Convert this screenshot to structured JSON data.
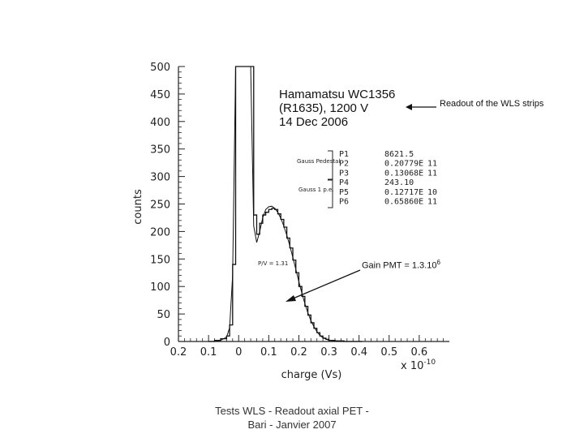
{
  "chart_data": {
    "type": "histogram",
    "title_lines": [
      "Hamamatsu WC1356",
      "(R1635), 1200 V",
      "14 Dec 2006"
    ],
    "xlabel": "charge (Vs)",
    "x_multiplier": "x 10",
    "x_multiplier_exp": "-10",
    "ylabel": "counts",
    "xlim": [
      -0.2,
      0.7
    ],
    "ylim": [
      0,
      500
    ],
    "x_ticks": [
      "0.2",
      "0.1",
      "0",
      "0.1",
      "0.2",
      "0.3",
      "0.4",
      "0.5",
      "0.6"
    ],
    "y_ticks": [
      "0",
      "50",
      "100",
      "150",
      "200",
      "250",
      "300",
      "350",
      "400",
      "450",
      "500"
    ],
    "x_tick_values": [
      -0.2,
      -0.1,
      0,
      0.1,
      0.2,
      0.3,
      0.4,
      0.5,
      0.6
    ],
    "y_tick_values": [
      0,
      50,
      100,
      150,
      200,
      250,
      300,
      350,
      400,
      450,
      500
    ],
    "histogram": {
      "x": [
        -0.1,
        -0.08,
        -0.06,
        -0.04,
        -0.03,
        -0.02,
        -0.01,
        0.0,
        0.01,
        0.02,
        0.03,
        0.04,
        0.05,
        0.06,
        0.07,
        0.08,
        0.09,
        0.1,
        0.11,
        0.12,
        0.13,
        0.14,
        0.15,
        0.16,
        0.17,
        0.18,
        0.19,
        0.2,
        0.21,
        0.22,
        0.23,
        0.24,
        0.25,
        0.26,
        0.27,
        0.28,
        0.29,
        0.3,
        0.32,
        0.35,
        0.4
      ],
      "y": [
        0,
        2,
        5,
        10,
        30,
        140,
        500,
        500,
        500,
        500,
        500,
        500,
        230,
        195,
        215,
        230,
        235,
        240,
        242,
        240,
        232,
        222,
        208,
        188,
        170,
        148,
        125,
        100,
        82,
        64,
        48,
        34,
        24,
        16,
        10,
        6,
        4,
        2,
        1,
        0,
        0
      ]
    },
    "fit": {
      "x": [
        -0.08,
        -0.06,
        -0.04,
        -0.03,
        -0.02,
        -0.01,
        0.0,
        0.01,
        0.02,
        0.03,
        0.04,
        0.05,
        0.06,
        0.07,
        0.08,
        0.09,
        0.1,
        0.11,
        0.12,
        0.13,
        0.14,
        0.15,
        0.16,
        0.17,
        0.18,
        0.19,
        0.2,
        0.21,
        0.22,
        0.23,
        0.24,
        0.25,
        0.26,
        0.27,
        0.28,
        0.3,
        0.35
      ],
      "y": [
        0,
        2,
        8,
        25,
        120,
        500,
        500,
        500,
        500,
        500,
        500,
        210,
        180,
        200,
        225,
        240,
        245,
        246,
        242,
        235,
        224,
        210,
        193,
        174,
        153,
        131,
        109,
        88,
        69,
        52,
        38,
        27,
        18,
        11,
        7,
        2,
        0
      ]
    },
    "fit_labels": [
      "Gauss Pedestal",
      "Gauss 1 p.e."
    ],
    "params": [
      {
        "name": "P1",
        "value": "8621.5",
        "exp": ""
      },
      {
        "name": "P2",
        "value": "0.20779E",
        "exp": "11"
      },
      {
        "name": "P3",
        "value": "0.13068E",
        "exp": "11"
      },
      {
        "name": "P4",
        "value": "243.10",
        "exp": ""
      },
      {
        "name": "P5",
        "value": "0.12717E",
        "exp": "10"
      },
      {
        "name": "P6",
        "value": "0.65860E",
        "exp": "11"
      }
    ],
    "pv_label": "P/V = 1.31",
    "annotations": {
      "readout": "Readout of the WLS strips",
      "gain_text": "Gain PMT = 1.3.10",
      "gain_exp": "6"
    },
    "colors": {
      "line": "#111111",
      "axis": "#222222"
    }
  },
  "footer": {
    "line1": "Tests WLS - Readout axial PET -",
    "line2": "Bari - Janvier 2007"
  }
}
